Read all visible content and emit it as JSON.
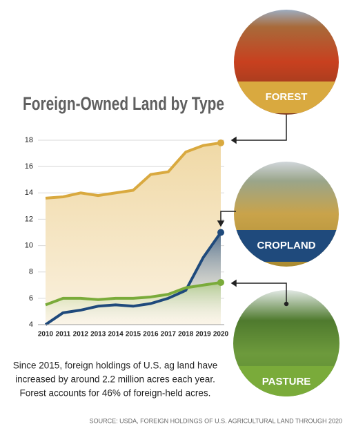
{
  "chart_data": {
    "type": "line",
    "title": "Foreign-Owned Land by Type",
    "categories": [
      "2010",
      "2011",
      "2012",
      "2013",
      "2014",
      "2015",
      "2016",
      "2017",
      "2018",
      "2019",
      "2020"
    ],
    "series": [
      {
        "name": "FOREST",
        "color": "#d9a93f",
        "values": [
          13.6,
          13.7,
          14.0,
          13.8,
          14.0,
          14.2,
          15.4,
          15.6,
          17.1,
          17.6,
          17.8
        ]
      },
      {
        "name": "CROPLAND",
        "color": "#1f4a7c",
        "values": [
          4.0,
          4.9,
          5.1,
          5.4,
          5.5,
          5.4,
          5.6,
          6.0,
          6.6,
          9.1,
          11.0
        ]
      },
      {
        "name": "PASTURE",
        "color": "#7aab3a",
        "values": [
          5.5,
          6.0,
          6.0,
          5.9,
          6.0,
          6.0,
          6.1,
          6.3,
          6.8,
          7.0,
          7.2
        ]
      }
    ],
    "ylim": [
      4,
      18
    ],
    "yticks": [
      4,
      6,
      8,
      10,
      12,
      14,
      16,
      18
    ],
    "grid": true,
    "caption": [
      "Since 2015, foreign holdings of U.S. ag land have",
      "increased by around 2.2 million acres each year.",
      "Forest accounts for 46% of foreign-held acres."
    ],
    "source": "SOURCE: USDA, FOREIGN HOLDINGS OF U.S. AGRICULTURAL LAND THROUGH 2020"
  }
}
